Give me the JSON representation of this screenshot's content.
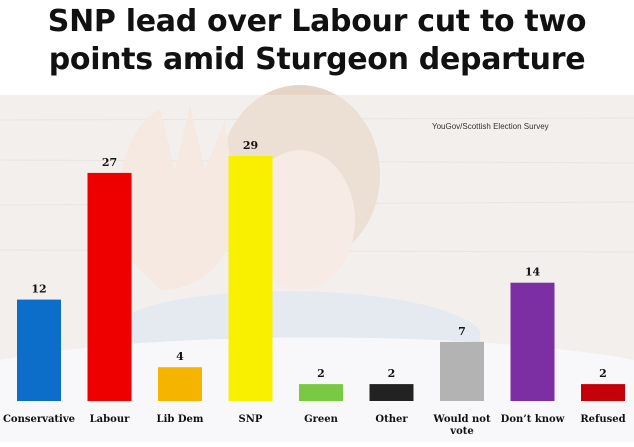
{
  "title_lines": [
    "SNP lead over Labour cut to two",
    "points amid Sturgeon departure"
  ],
  "source": "YouGov/Scottish Election Survey",
  "chart_data": {
    "type": "bar",
    "title": "SNP lead over Labour cut to two points amid Sturgeon departure",
    "categories": [
      "Conservative",
      "Labour",
      "Lib Dem",
      "SNP",
      "Green",
      "Other",
      "Would not vote",
      "Don't know",
      "Refused"
    ],
    "values": [
      12,
      27,
      4,
      29,
      2,
      2,
      7,
      14,
      2
    ],
    "colors": [
      "#0d6ec9",
      "#ef0000",
      "#f5b400",
      "#f9f000",
      "#7ac943",
      "#222222",
      "#b3b3b3",
      "#7b2fa3",
      "#c4000b"
    ],
    "category_labels": [
      "Conservative",
      "Labour",
      "Lib Dem",
      "SNP",
      "Green",
      "Other",
      "Would not vote",
      "Don’t know",
      "Refused"
    ],
    "data_labels": [
      "12",
      "27",
      "4",
      "29",
      "2",
      "2",
      "7",
      "14",
      "2"
    ],
    "ylim": [
      0,
      30
    ],
    "grid": false,
    "legend": "none",
    "background_photo": "faded-portrait-waving"
  }
}
